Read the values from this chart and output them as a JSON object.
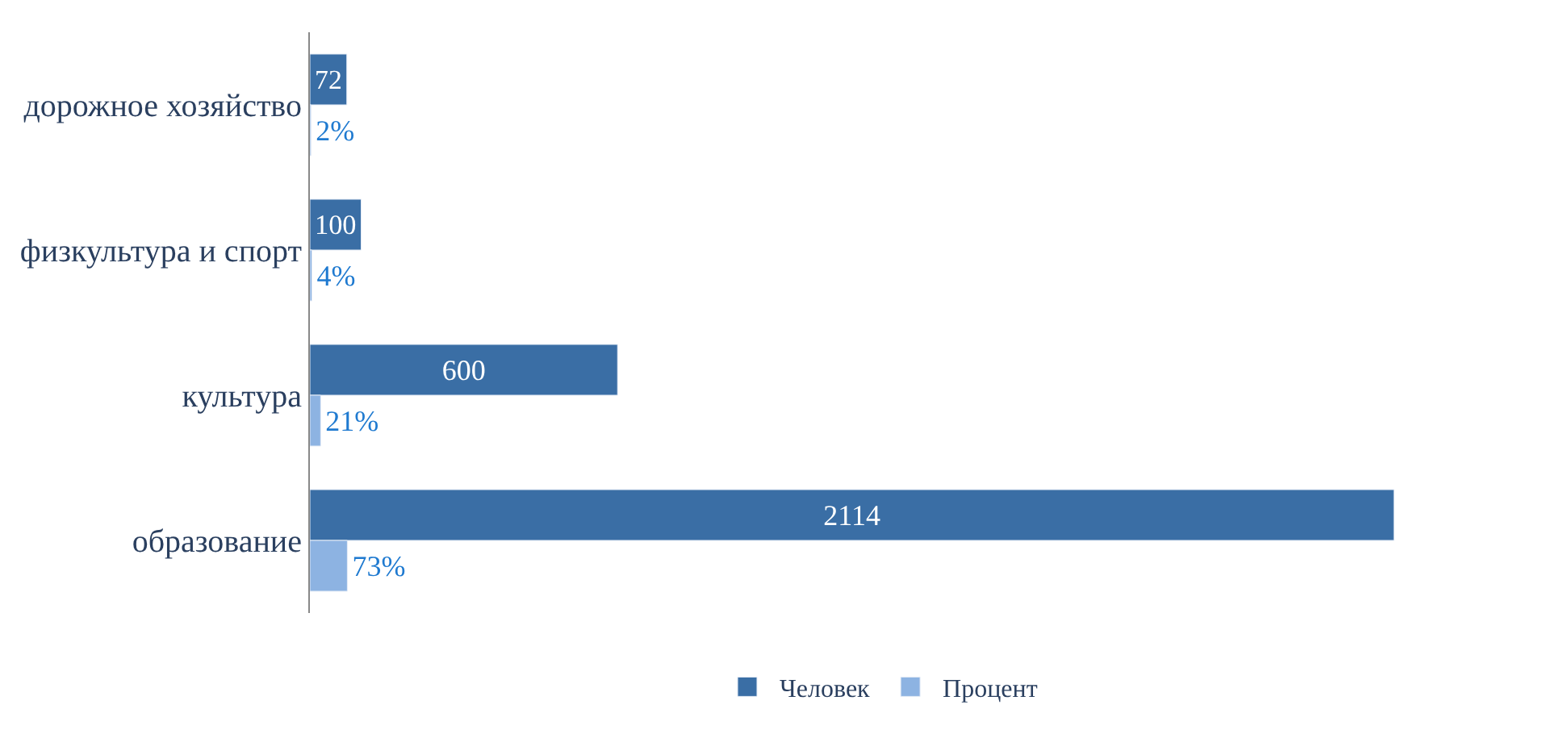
{
  "chart_data": {
    "type": "bar",
    "orientation": "horizontal",
    "categories": [
      "дорожное хозяйство",
      "физкультура и спорт",
      "культура",
      "образование"
    ],
    "series": [
      {
        "name": "Человек",
        "color": "#3a6ea5",
        "values": [
          72,
          100,
          600,
          2114
        ],
        "data_labels": true
      },
      {
        "name": "Процент",
        "color": "#8db3e2",
        "values": [
          2,
          4,
          21,
          73
        ],
        "value_labels": [
          "2%",
          "4%",
          "21%",
          "73%"
        ]
      }
    ],
    "legend": "bottom",
    "tick_labels": "y"
  }
}
